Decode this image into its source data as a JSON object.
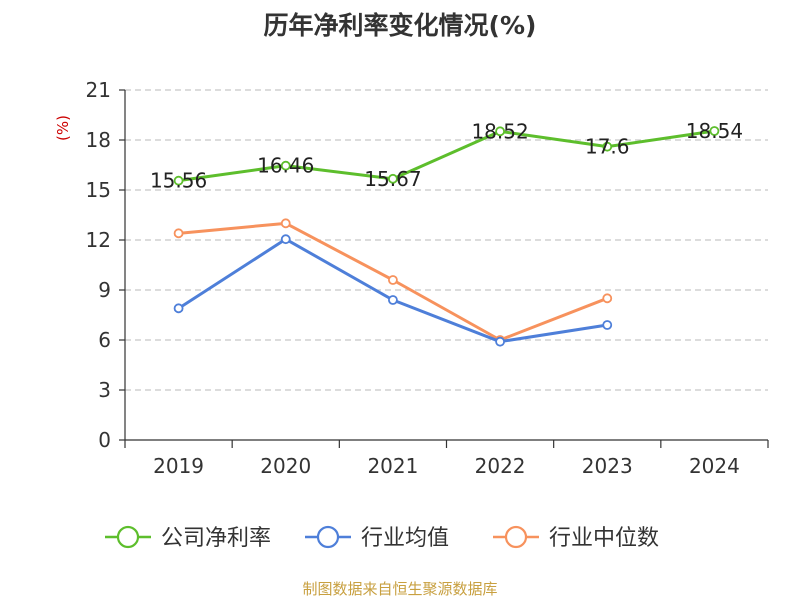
{
  "chart_data": {
    "type": "line",
    "title": "历年净利率变化情况(%)",
    "ylabel": "(%)",
    "categories": [
      "2019",
      "2020",
      "2021",
      "2022",
      "2023",
      "2024"
    ],
    "yticks": [
      "0",
      "3",
      "6",
      "9",
      "12",
      "15",
      "18",
      "21"
    ],
    "ylim": [
      0,
      21
    ],
    "grid": true,
    "legend_position": "bottom",
    "series": [
      {
        "name": "公司净利率",
        "color": "#5dbe2c",
        "values": [
          15.56,
          16.46,
          15.67,
          18.52,
          17.6,
          18.54
        ],
        "labels": [
          "15.56",
          "16.46",
          "15.67",
          "18.52",
          "17.6",
          "18.54"
        ]
      },
      {
        "name": "行业均值",
        "color": "#4e7fd9",
        "values": [
          7.9,
          12.05,
          8.4,
          5.9,
          6.9,
          null
        ]
      },
      {
        "name": "行业中位数",
        "color": "#f7925d",
        "values": [
          12.4,
          13.0,
          9.6,
          6.0,
          8.5,
          null
        ]
      }
    ]
  },
  "footer": {
    "source": "制图数据来自恒生聚源数据库"
  }
}
